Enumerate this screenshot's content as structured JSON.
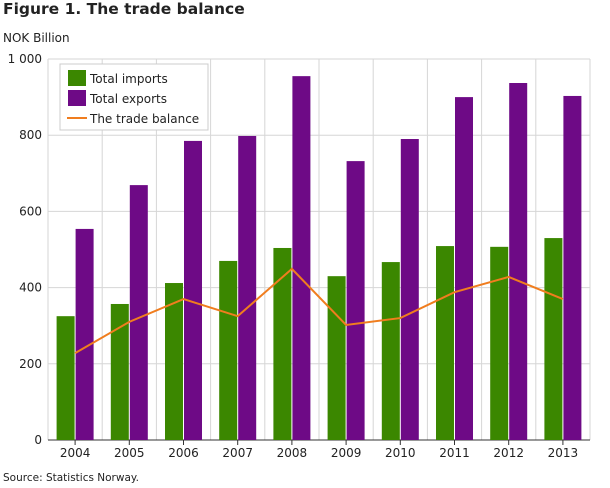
{
  "chart_data": {
    "type": "bar",
    "title": "Figure 1. The trade balance",
    "ylabel": "NOK Billion",
    "xlabel": "",
    "ylim": [
      0,
      1000
    ],
    "yticks": [
      "0",
      "200",
      "400",
      "600",
      "800",
      "1 000"
    ],
    "ytick_values": [
      0,
      200,
      400,
      600,
      800,
      1000
    ],
    "grid": true,
    "legend": "top-left",
    "categories": [
      "2004",
      "2005",
      "2006",
      "2007",
      "2008",
      "2009",
      "2010",
      "2011",
      "2012",
      "2013"
    ],
    "series": [
      {
        "name": "Total imports",
        "kind": "bar",
        "color": "#3b8700",
        "values": [
          325,
          357,
          412,
          470,
          504,
          430,
          467,
          509,
          507,
          530
        ]
      },
      {
        "name": "Total exports",
        "kind": "bar",
        "color": "#6e0a86",
        "values": [
          554,
          669,
          785,
          798,
          955,
          732,
          790,
          900,
          937,
          903
        ]
      },
      {
        "name": "The trade balance",
        "kind": "line",
        "color": "#f07d1e",
        "values": [
          228,
          310,
          370,
          325,
          449,
          302,
          320,
          388,
          428,
          370
        ]
      }
    ]
  },
  "source": "Source: Statistics Norway."
}
